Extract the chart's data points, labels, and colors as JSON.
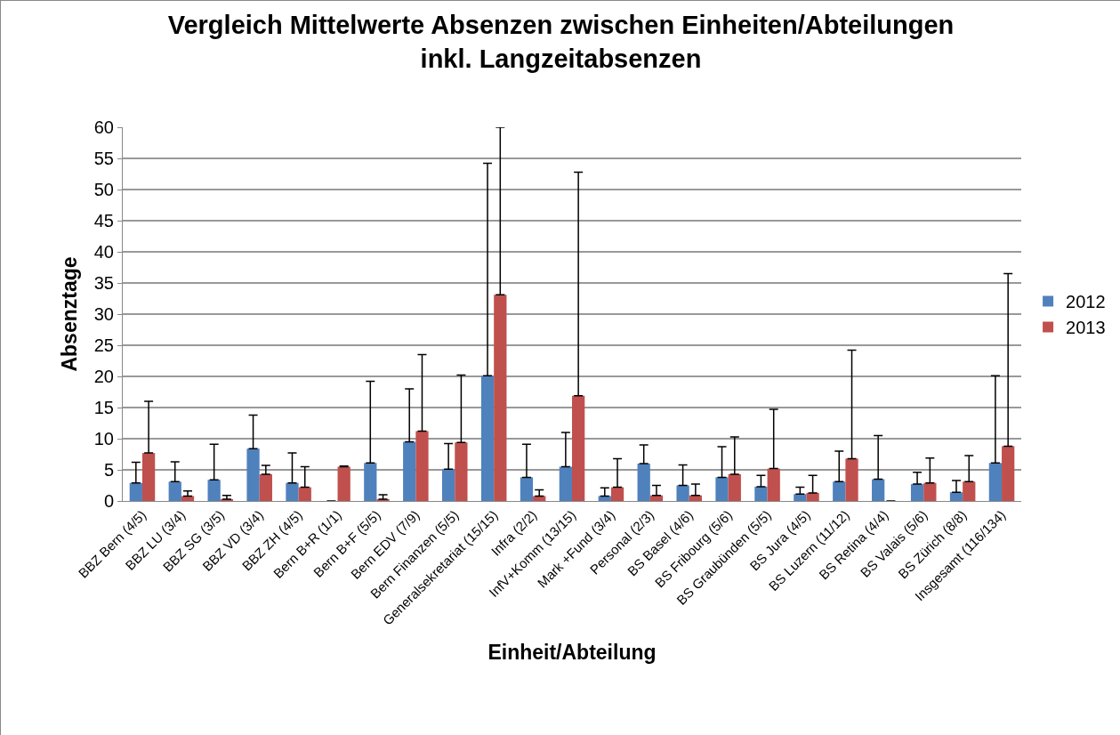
{
  "chart_data": {
    "type": "bar",
    "title": "Vergleich Mittelwerte Absenzen zwischen Einheiten/Abteilungen inkl. Langzeitabsenzen",
    "xlabel": "Einheit/Abteilung",
    "ylabel": "Absenztage",
    "categories": [
      "BBZ Bern (4/5)",
      "BBZ LU (3/4)",
      "BBZ SG (3/5)",
      "BBZ VD (3/4)",
      "BBZ ZH (4/5)",
      "Bern B+R (1/1)",
      "Bern B+F (5/5)",
      "Bern EDV (7/9)",
      "Bern Finanzen (5/5)",
      "Generalsekretariat (15/15)",
      "Infra (2/2)",
      "InfV+Komm (13/15)",
      "Mark +Fund (3/4)",
      "Personal (2/3)",
      "BS Basel (4/6)",
      "BS Fribourg (5/6)",
      "BS Graubünden (5/5)",
      "BS Jura (4/5)",
      "BS Luzern (11/12)",
      "BS Retina (4/4)",
      "BS Valais (5/6)",
      "BS Zürich (8/8)",
      "Insgesamt (116/134)"
    ],
    "series": [
      {
        "name": "2012",
        "color": "#4f81bd",
        "values": [
          2.9,
          3.1,
          3.4,
          8.4,
          2.9,
          0,
          6.1,
          9.5,
          5.1,
          20.1,
          3.8,
          5.5,
          0.8,
          6.0,
          2.5,
          3.8,
          2.3,
          1.1,
          3.1,
          3.5,
          2.7,
          1.4,
          6.1
        ],
        "errors": [
          [
            2.9,
            6.2
          ],
          [
            3.1,
            6.3
          ],
          [
            3.4,
            9.1
          ],
          [
            8.4,
            13.8
          ],
          [
            2.9,
            7.7
          ],
          null,
          [
            6.1,
            19.2
          ],
          [
            9.5,
            18.0
          ],
          [
            5.1,
            9.2
          ],
          [
            20.1,
            54.2
          ],
          [
            3.8,
            9.1
          ],
          [
            5.5,
            11.0
          ],
          [
            0.8,
            2.1
          ],
          [
            6.0,
            9.0
          ],
          [
            2.5,
            5.8
          ],
          [
            3.8,
            8.7
          ],
          [
            2.3,
            4.1
          ],
          [
            1.1,
            2.2
          ],
          [
            3.1,
            8.0
          ],
          [
            3.5,
            10.5
          ],
          [
            2.7,
            4.6
          ],
          [
            1.4,
            3.3
          ],
          [
            6.1,
            20.1
          ]
        ]
      },
      {
        "name": "2013",
        "color": "#c0504d",
        "values": [
          7.7,
          0.8,
          0.3,
          4.3,
          2.2,
          5.5,
          0.3,
          11.2,
          9.4,
          33.1,
          0.8,
          16.9,
          2.2,
          0.9,
          0.9,
          4.3,
          5.2,
          1.3,
          6.8,
          0,
          2.9,
          3.1,
          8.8
        ],
        "errors": [
          [
            7.7,
            16.0
          ],
          [
            0.8,
            1.6
          ],
          [
            0.3,
            0.9
          ],
          [
            4.3,
            5.7
          ],
          [
            2.2,
            5.5
          ],
          [
            5.5,
            5.6
          ],
          [
            0.3,
            1.0
          ],
          [
            11.2,
            23.5
          ],
          [
            9.4,
            20.2
          ],
          [
            33.1,
            60
          ],
          [
            0.8,
            1.8
          ],
          [
            16.9,
            52.8
          ],
          [
            2.2,
            6.8
          ],
          [
            0.9,
            2.5
          ],
          [
            0.9,
            2.7
          ],
          [
            4.3,
            10.3
          ],
          [
            5.2,
            14.7
          ],
          [
            1.3,
            4.1
          ],
          [
            6.8,
            24.2
          ],
          null,
          [
            2.9,
            6.9
          ],
          [
            3.1,
            7.3
          ],
          [
            8.8,
            36.5
          ]
        ]
      }
    ],
    "ylim": [
      0,
      60
    ],
    "yticks": [
      0,
      5,
      10,
      15,
      20,
      25,
      30,
      35,
      40,
      45,
      50,
      55,
      60
    ],
    "grid": "y",
    "legend": "right"
  }
}
